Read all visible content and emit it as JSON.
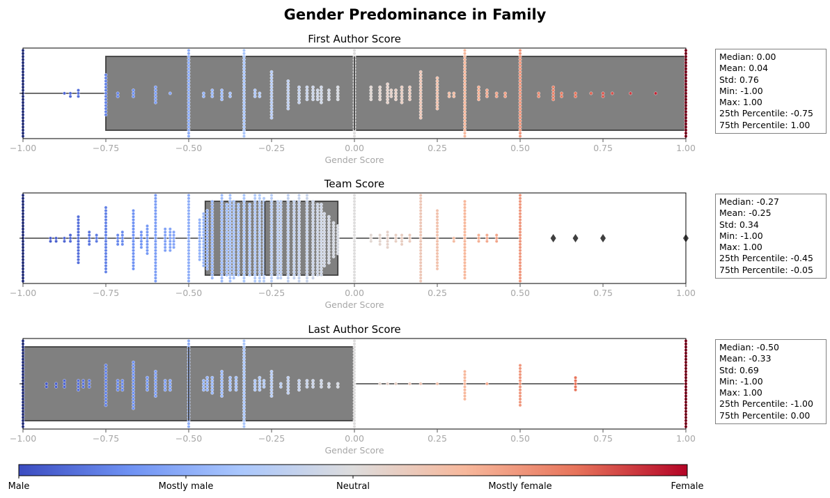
{
  "figure": {
    "title": "Gender Predominance in Family"
  },
  "colorbar": {
    "colors": [
      "#3b4cc0",
      "#6f92f3",
      "#aac7fd",
      "#dddcdc",
      "#f7b89c",
      "#e7745b",
      "#b40426"
    ],
    "labels": [
      "Male",
      "Mostly male",
      "Neutral",
      "Mostly female",
      "Female"
    ],
    "ticks": [
      -1.0,
      -0.5,
      0.0,
      0.5,
      1.0
    ]
  },
  "chart_data": [
    {
      "type": "box+swarm",
      "title": "First Author Score",
      "xlabel": "Gender Score",
      "xlim": [
        -1.0,
        1.0
      ],
      "xticks": [
        "−1.00",
        "−0.75",
        "−0.50",
        "−0.25",
        "0.00",
        "0.25",
        "0.50",
        "0.75",
        "1.00"
      ],
      "box": {
        "q1": -0.75,
        "median": 0.0,
        "q3": 1.0,
        "whisker_low": -1.0,
        "whisker_high": 1.0,
        "outliers": []
      },
      "points": [
        {
          "x": -1.0,
          "n": 40
        },
        {
          "x": -0.875,
          "n": 1
        },
        {
          "x": -0.857,
          "n": 2
        },
        {
          "x": -0.833,
          "n": 3
        },
        {
          "x": -0.75,
          "n": 14
        },
        {
          "x": -0.714,
          "n": 2
        },
        {
          "x": -0.667,
          "n": 3
        },
        {
          "x": -0.6,
          "n": 6
        },
        {
          "x": -0.556,
          "n": 1
        },
        {
          "x": -0.5,
          "n": 40
        },
        {
          "x": -0.455,
          "n": 2
        },
        {
          "x": -0.429,
          "n": 3
        },
        {
          "x": -0.4,
          "n": 4
        },
        {
          "x": -0.375,
          "n": 2
        },
        {
          "x": -0.333,
          "n": 40
        },
        {
          "x": -0.3,
          "n": 3
        },
        {
          "x": -0.286,
          "n": 2
        },
        {
          "x": -0.25,
          "n": 16
        },
        {
          "x": -0.2,
          "n": 10
        },
        {
          "x": -0.167,
          "n": 6
        },
        {
          "x": -0.143,
          "n": 5
        },
        {
          "x": -0.125,
          "n": 5
        },
        {
          "x": -0.111,
          "n": 4
        },
        {
          "x": -0.1,
          "n": 6
        },
        {
          "x": -0.077,
          "n": 4
        },
        {
          "x": -0.05,
          "n": 5
        },
        {
          "x": 0.0,
          "n": 40
        },
        {
          "x": 0.05,
          "n": 5
        },
        {
          "x": 0.077,
          "n": 5
        },
        {
          "x": 0.1,
          "n": 7
        },
        {
          "x": 0.111,
          "n": 3
        },
        {
          "x": 0.125,
          "n": 4
        },
        {
          "x": 0.143,
          "n": 6
        },
        {
          "x": 0.167,
          "n": 5
        },
        {
          "x": 0.2,
          "n": 16
        },
        {
          "x": 0.25,
          "n": 11
        },
        {
          "x": 0.286,
          "n": 2
        },
        {
          "x": 0.3,
          "n": 2
        },
        {
          "x": 0.333,
          "n": 40
        },
        {
          "x": 0.375,
          "n": 5
        },
        {
          "x": 0.4,
          "n": 3
        },
        {
          "x": 0.429,
          "n": 2
        },
        {
          "x": 0.455,
          "n": 2
        },
        {
          "x": 0.5,
          "n": 40
        },
        {
          "x": 0.556,
          "n": 2
        },
        {
          "x": 0.6,
          "n": 5
        },
        {
          "x": 0.625,
          "n": 2
        },
        {
          "x": 0.667,
          "n": 2
        },
        {
          "x": 0.714,
          "n": 1
        },
        {
          "x": 0.75,
          "n": 2
        },
        {
          "x": 0.778,
          "n": 1
        },
        {
          "x": 0.833,
          "n": 1
        },
        {
          "x": 0.909,
          "n": 1
        },
        {
          "x": 1.0,
          "n": 40
        }
      ],
      "stats": [
        "Median: 0.00",
        "Mean: 0.04",
        "Std: 0.76",
        "Min: -1.00",
        "Max: 1.00",
        "25th Percentile: -0.75",
        "75th Percentile: 1.00"
      ]
    },
    {
      "type": "box+swarm",
      "title": "Team Score",
      "xlabel": "Gender Score",
      "xlim": [
        -1.0,
        1.0
      ],
      "xticks": [
        "−1.00",
        "−0.75",
        "−0.50",
        "−0.25",
        "0.00",
        "0.25",
        "0.50",
        "0.75",
        "1.00"
      ],
      "box": {
        "q1": -0.45,
        "median": -0.27,
        "q3": -0.05,
        "whisker_low": -1.0,
        "whisker_high": 0.5,
        "outliers": [
          0.6,
          0.667,
          0.75,
          1.0
        ]
      },
      "points": [
        {
          "x": -1.0,
          "n": 40
        },
        {
          "x": -0.917,
          "n": 2
        },
        {
          "x": -0.9,
          "n": 2
        },
        {
          "x": -0.875,
          "n": 2
        },
        {
          "x": -0.857,
          "n": 3
        },
        {
          "x": -0.833,
          "n": 16
        },
        {
          "x": -0.8,
          "n": 5
        },
        {
          "x": -0.778,
          "n": 3
        },
        {
          "x": -0.75,
          "n": 22
        },
        {
          "x": -0.714,
          "n": 4
        },
        {
          "x": -0.7,
          "n": 5
        },
        {
          "x": -0.667,
          "n": 20
        },
        {
          "x": -0.643,
          "n": 6
        },
        {
          "x": -0.625,
          "n": 10
        },
        {
          "x": -0.6,
          "n": 40
        },
        {
          "x": -0.571,
          "n": 8
        },
        {
          "x": -0.556,
          "n": 8
        },
        {
          "x": -0.545,
          "n": 6
        },
        {
          "x": -0.5,
          "n": 40
        },
        {
          "x": -0.467,
          "n": 14
        },
        {
          "x": -0.455,
          "n": 18
        },
        {
          "x": -0.444,
          "n": 20
        },
        {
          "x": -0.429,
          "n": 26
        },
        {
          "x": -0.4,
          "n": 34
        },
        {
          "x": -0.385,
          "n": 24
        },
        {
          "x": -0.375,
          "n": 30
        },
        {
          "x": -0.364,
          "n": 26
        },
        {
          "x": -0.35,
          "n": 24
        },
        {
          "x": -0.333,
          "n": 40
        },
        {
          "x": -0.316,
          "n": 24
        },
        {
          "x": -0.3,
          "n": 34
        },
        {
          "x": -0.286,
          "n": 30
        },
        {
          "x": -0.273,
          "n": 28
        },
        {
          "x": -0.25,
          "n": 40
        },
        {
          "x": -0.231,
          "n": 26
        },
        {
          "x": -0.222,
          "n": 26
        },
        {
          "x": -0.2,
          "n": 34
        },
        {
          "x": -0.182,
          "n": 26
        },
        {
          "x": -0.167,
          "n": 32
        },
        {
          "x": -0.143,
          "n": 40
        },
        {
          "x": -0.125,
          "n": 26
        },
        {
          "x": -0.111,
          "n": 24
        },
        {
          "x": -0.1,
          "n": 24
        },
        {
          "x": -0.091,
          "n": 18
        },
        {
          "x": -0.077,
          "n": 16
        },
        {
          "x": -0.063,
          "n": 12
        },
        {
          "x": -0.05,
          "n": 10
        },
        {
          "x": 0.0,
          "n": 40
        },
        {
          "x": 0.05,
          "n": 3
        },
        {
          "x": 0.077,
          "n": 4
        },
        {
          "x": 0.1,
          "n": 6
        },
        {
          "x": 0.125,
          "n": 3
        },
        {
          "x": 0.143,
          "n": 4
        },
        {
          "x": 0.167,
          "n": 3
        },
        {
          "x": 0.2,
          "n": 40
        },
        {
          "x": 0.25,
          "n": 20
        },
        {
          "x": 0.3,
          "n": 2
        },
        {
          "x": 0.333,
          "n": 26
        },
        {
          "x": 0.375,
          "n": 3
        },
        {
          "x": 0.4,
          "n": 3
        },
        {
          "x": 0.429,
          "n": 3
        },
        {
          "x": 0.5,
          "n": 30
        }
      ],
      "stats": [
        "Median: -0.27",
        "Mean: -0.25",
        "Std: 0.34",
        "Min: -1.00",
        "Max: 1.00",
        "25th Percentile: -0.45",
        "75th Percentile: -0.05"
      ]
    },
    {
      "type": "box+swarm",
      "title": "Last Author Score",
      "xlabel": "Gender Score",
      "xlim": [
        -1.0,
        1.0
      ],
      "xticks": [
        "−1.00",
        "−0.75",
        "−0.50",
        "−0.25",
        "0.00",
        "0.25",
        "0.50",
        "0.75",
        "1.00"
      ],
      "box": {
        "q1": -1.0,
        "median": -0.5,
        "q3": 0.0,
        "whisker_low": -1.0,
        "whisker_high": 1.0,
        "outliers": []
      },
      "points": [
        {
          "x": -1.0,
          "n": 40
        },
        {
          "x": -0.929,
          "n": 2
        },
        {
          "x": -0.9,
          "n": 2
        },
        {
          "x": -0.875,
          "n": 3
        },
        {
          "x": -0.833,
          "n": 4
        },
        {
          "x": -0.818,
          "n": 3
        },
        {
          "x": -0.8,
          "n": 3
        },
        {
          "x": -0.75,
          "n": 14
        },
        {
          "x": -0.714,
          "n": 4
        },
        {
          "x": -0.7,
          "n": 4
        },
        {
          "x": -0.667,
          "n": 16
        },
        {
          "x": -0.625,
          "n": 5
        },
        {
          "x": -0.6,
          "n": 9
        },
        {
          "x": -0.571,
          "n": 4
        },
        {
          "x": -0.556,
          "n": 4
        },
        {
          "x": -0.5,
          "n": 40
        },
        {
          "x": -0.455,
          "n": 4
        },
        {
          "x": -0.444,
          "n": 5
        },
        {
          "x": -0.429,
          "n": 6
        },
        {
          "x": -0.4,
          "n": 9
        },
        {
          "x": -0.375,
          "n": 5
        },
        {
          "x": -0.357,
          "n": 5
        },
        {
          "x": -0.333,
          "n": 40
        },
        {
          "x": -0.3,
          "n": 4
        },
        {
          "x": -0.286,
          "n": 5
        },
        {
          "x": -0.273,
          "n": 3
        },
        {
          "x": -0.25,
          "n": 9
        },
        {
          "x": -0.222,
          "n": 2
        },
        {
          "x": -0.2,
          "n": 6
        },
        {
          "x": -0.167,
          "n": 4
        },
        {
          "x": -0.143,
          "n": 3
        },
        {
          "x": -0.125,
          "n": 3
        },
        {
          "x": -0.1,
          "n": 3
        },
        {
          "x": -0.077,
          "n": 2
        },
        {
          "x": -0.05,
          "n": 2
        },
        {
          "x": 0.0,
          "n": 40
        },
        {
          "x": 0.077,
          "n": 1
        },
        {
          "x": 0.1,
          "n": 1
        },
        {
          "x": 0.125,
          "n": 1
        },
        {
          "x": 0.167,
          "n": 1
        },
        {
          "x": 0.2,
          "n": 1
        },
        {
          "x": 0.25,
          "n": 1
        },
        {
          "x": 0.333,
          "n": 10
        },
        {
          "x": 0.4,
          "n": 1
        },
        {
          "x": 0.5,
          "n": 14
        },
        {
          "x": 0.667,
          "n": 5
        },
        {
          "x": 1.0,
          "n": 40
        }
      ],
      "stats": [
        "Median: -0.50",
        "Mean: -0.33",
        "Std: 0.69",
        "Min: -1.00",
        "Max: 1.00",
        "25th Percentile: -1.00",
        "75th Percentile: 0.00"
      ]
    }
  ]
}
